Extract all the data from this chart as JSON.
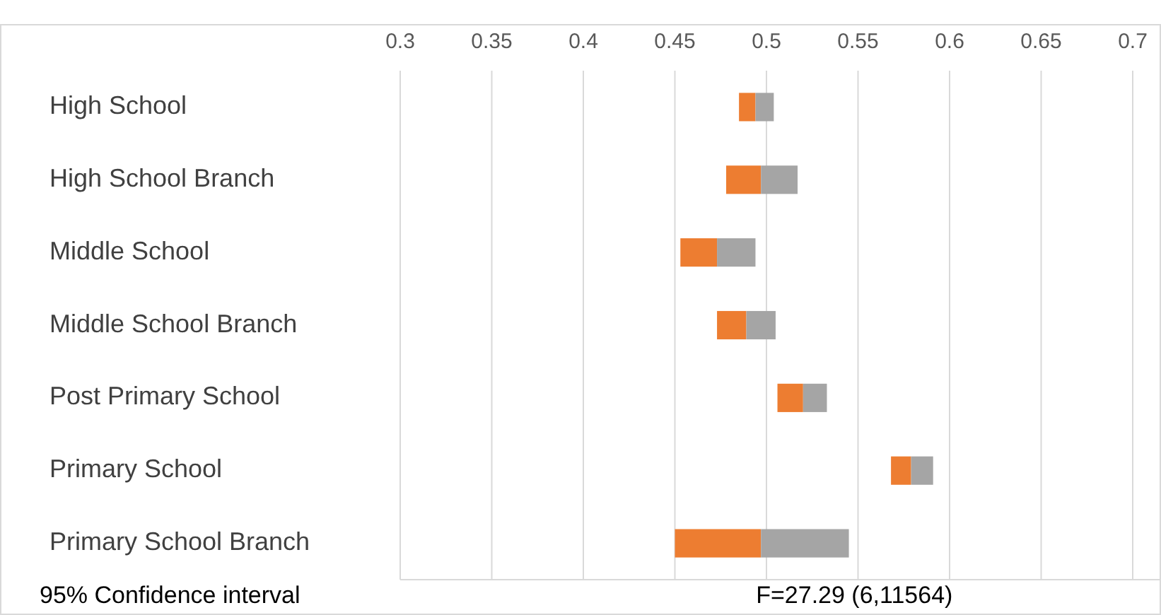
{
  "chart_data": {
    "type": "bar",
    "orientation": "horizontal",
    "categories": [
      "High School",
      "High School Branch",
      "Middle School",
      "Middle School Branch",
      "Post Primary School",
      "Primary School",
      "Primary School Branch"
    ],
    "series": [
      {
        "color": "#ed7d31",
        "base": [
          0.485,
          0.478,
          0.453,
          0.473,
          0.506,
          0.568,
          0.45
        ],
        "values": [
          0.009,
          0.019,
          0.02,
          0.016,
          0.014,
          0.011,
          0.047
        ]
      },
      {
        "color": "#a5a5a5",
        "base": [
          0.494,
          0.497,
          0.473,
          0.489,
          0.52,
          0.579,
          0.497
        ],
        "values": [
          0.01,
          0.02,
          0.021,
          0.016,
          0.013,
          0.012,
          0.048
        ]
      }
    ],
    "xlim": [
      0.3,
      0.7
    ],
    "xticks": [
      0.3,
      0.35,
      0.4,
      0.45,
      0.5,
      0.55,
      0.6,
      0.65,
      0.7
    ],
    "grid": "x",
    "annotations": [
      "95% Confidence interval",
      "F=27.29 (6,11564)"
    ]
  }
}
